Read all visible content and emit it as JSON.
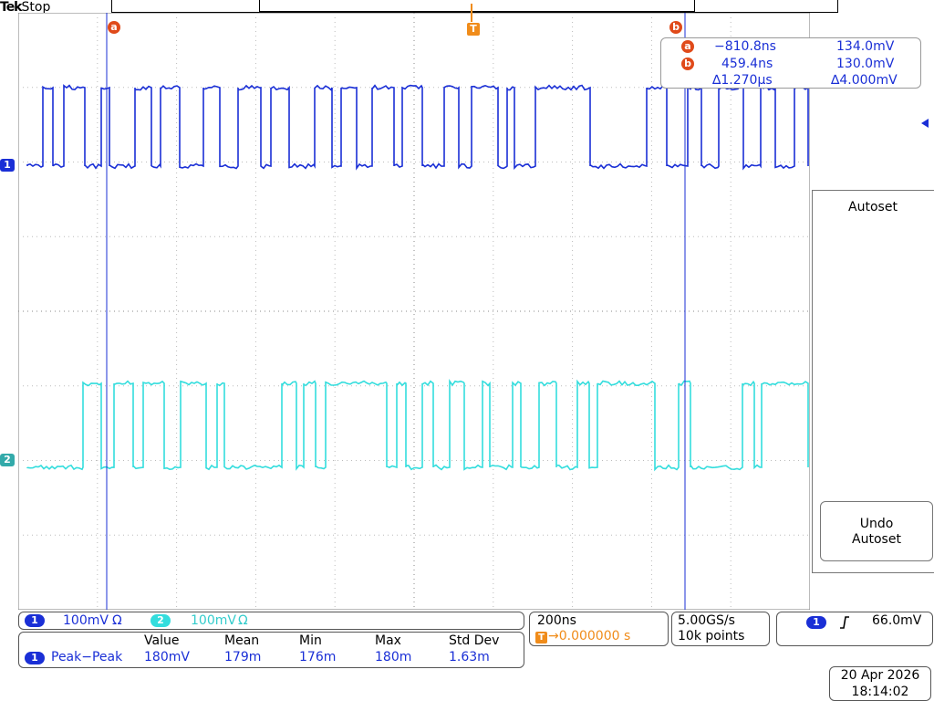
{
  "brand": {
    "logo": "Tek",
    "run_state": "Stop"
  },
  "markers": {
    "cursor_a": "a",
    "cursor_b": "b",
    "trigger": "T",
    "ch1_ground": "1",
    "ch2_ground": "2"
  },
  "cursor_readout": {
    "a": {
      "label": "a",
      "time": "−810.8ns",
      "volt": "134.0mV"
    },
    "b": {
      "label": "b",
      "time": "459.4ns",
      "volt": "130.0mV"
    },
    "delta": {
      "time": "∆1.270µs",
      "volt": "∆4.000mV"
    }
  },
  "side_menu": {
    "autoset": "Autoset",
    "undo_line1": "Undo",
    "undo_line2": "Autoset"
  },
  "channels": [
    {
      "id": "1",
      "scale": "100mV",
      "coupling": "Ω",
      "color": "#1a2fd6"
    },
    {
      "id": "2",
      "scale": "100mV",
      "coupling": "Ω",
      "color": "#33dddd"
    }
  ],
  "measurement": {
    "headers": [
      "Value",
      "Mean",
      "Min",
      "Max",
      "Std Dev"
    ],
    "channel": "1",
    "name": "Peak−Peak",
    "values": [
      "180mV",
      "179m",
      "176m",
      "180m",
      "1.63m"
    ]
  },
  "horizontal": {
    "scale": "200ns",
    "trigger_marker": "T",
    "position": "→0.000000 s"
  },
  "acquisition": {
    "rate": "5.00GS/s",
    "points": "10k points"
  },
  "trigger": {
    "channel": "1",
    "slope_icon": "rising-edge-icon",
    "level": "66.0mV"
  },
  "datetime": {
    "date": "20 Apr  2026",
    "time": "18:14:02"
  }
}
